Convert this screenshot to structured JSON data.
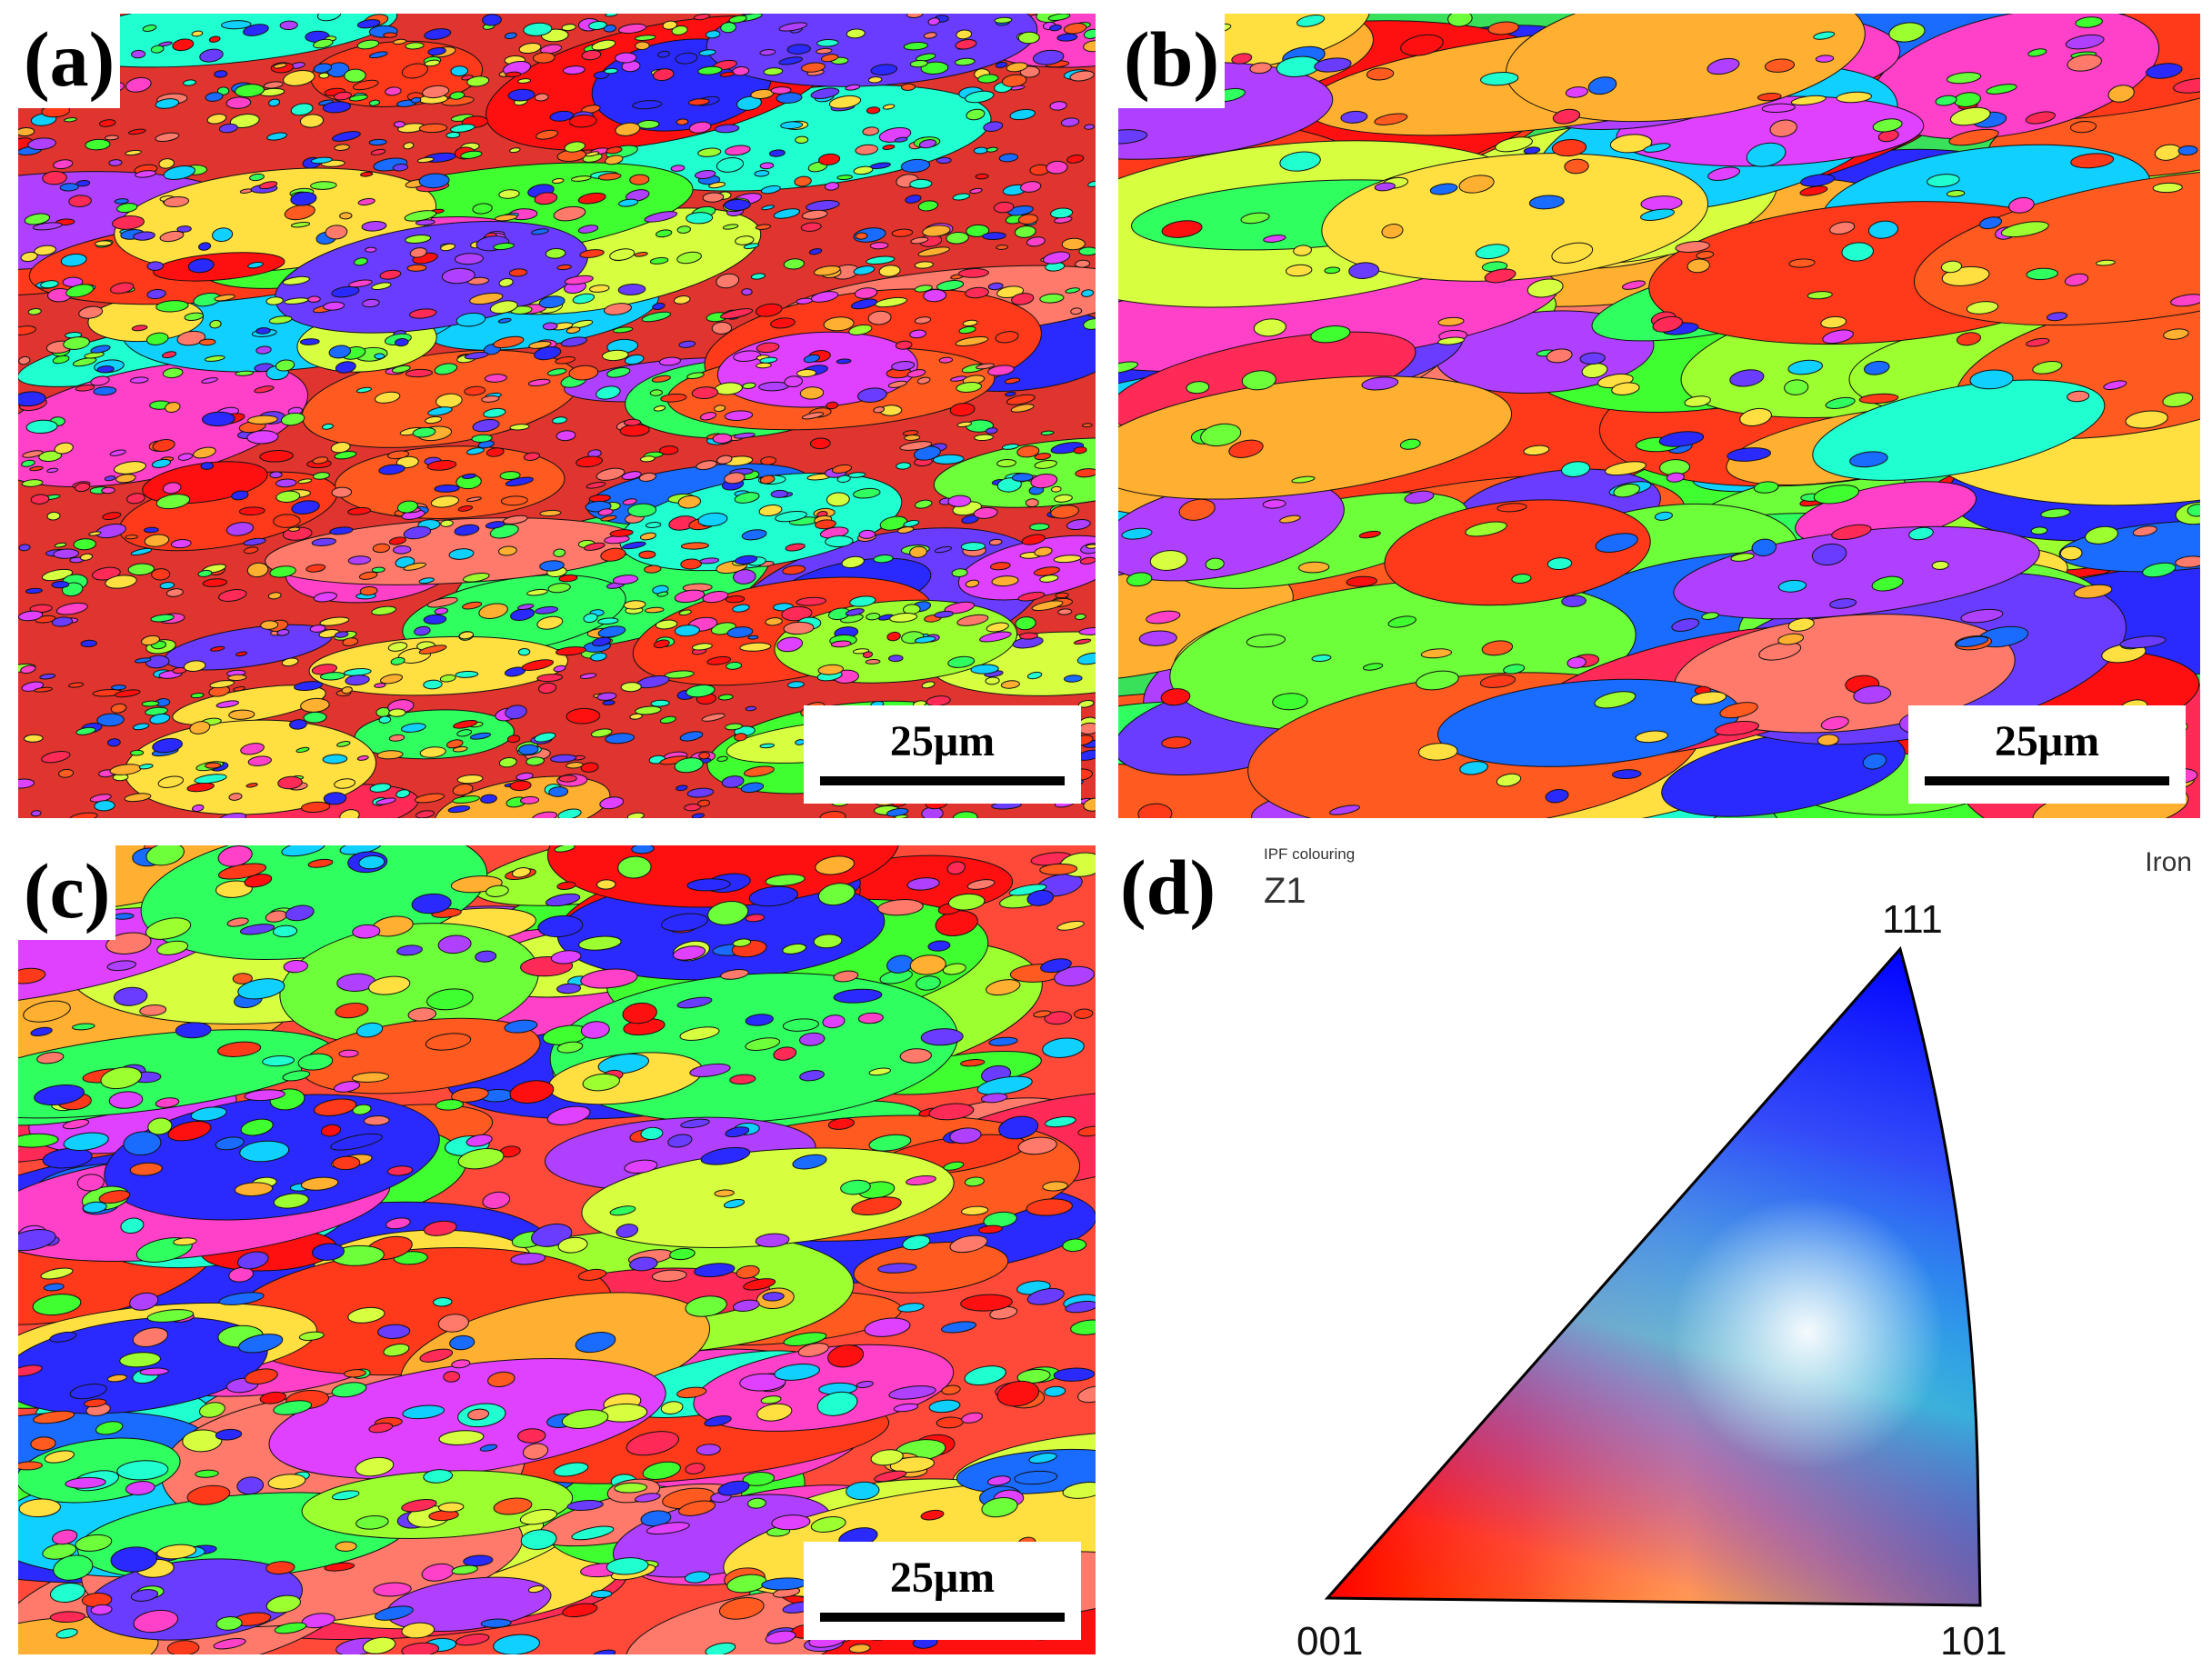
{
  "panels": [
    {
      "label": "(a)",
      "scale_bar": "25μm"
    },
    {
      "label": "(b)",
      "scale_bar": "25μm"
    },
    {
      "label": "(c)",
      "scale_bar": "25μm"
    }
  ],
  "legend": {
    "label": "(d)",
    "header_small": "IPF colouring",
    "axis_label": "Z1",
    "phase_name": "Iron",
    "corners": {
      "top": "111",
      "left": "001",
      "right": "101"
    },
    "colors": {
      "001": "#ff0000",
      "101": "#00ff00",
      "111": "#0000ff"
    }
  }
}
